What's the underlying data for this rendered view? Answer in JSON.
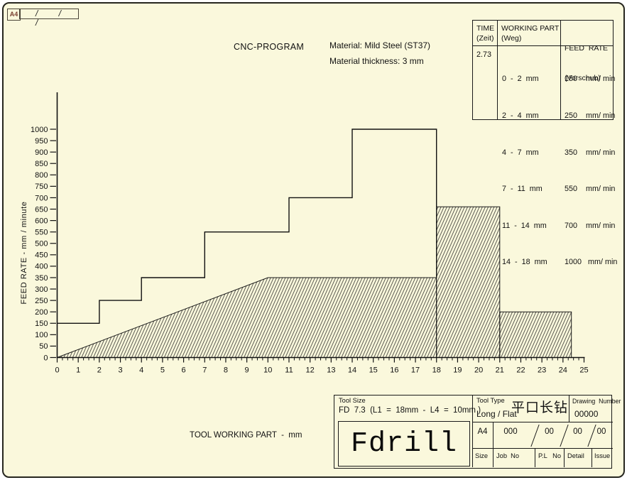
{
  "page": {
    "sheet_size": "A4",
    "corner_slashes": "/ / /"
  },
  "header": {
    "material_line1": "Material: Mild Steel (ST37)",
    "material_line2": "Material thickness: 3 mm"
  },
  "feed_table": {
    "col1_title": "TIME",
    "col1_sub": "(Zeit)",
    "col2_title": "WORKING PART",
    "col2_sub": "(Weg)",
    "col3_title": "FEED  RATE",
    "col3_sub": "(Vorschub)",
    "time_value": "2.73",
    "rows": [
      {
        "range": "0  -  2  mm",
        "rate": "150    mm/ min"
      },
      {
        "range": "2  -  4  mm",
        "rate": "250    mm/ min"
      },
      {
        "range": "4  -  7  mm",
        "rate": "350    mm/ min"
      },
      {
        "range": "7  -  11  mm",
        "rate": "550    mm/ min"
      },
      {
        "range": "11  -  14  mm",
        "rate": "700    mm/ min"
      },
      {
        "range": "14  -  18  mm",
        "rate": "1000   mm/ min"
      }
    ]
  },
  "chart_data": {
    "type": "line",
    "variant": "step-profile-with-hatched-area",
    "title": "CNC-PROGRAM",
    "xlabel": "TOOL WORKING PART  -  mm",
    "ylabel": "FEED RATE - mm / minute",
    "xlim": [
      0,
      25
    ],
    "ylim": [
      0,
      1000
    ],
    "x_tick_step": 1,
    "x_minor_tick_step": 0.25,
    "y_tick_step": 50,
    "grid": false,
    "legend": null,
    "series": [
      {
        "name": "programmed feed rate steps",
        "style": "step-outline",
        "points": [
          [
            0,
            150
          ],
          [
            2,
            150
          ],
          [
            2,
            250
          ],
          [
            4,
            250
          ],
          [
            4,
            350
          ],
          [
            7,
            350
          ],
          [
            7,
            550
          ],
          [
            11,
            550
          ],
          [
            11,
            700
          ],
          [
            14,
            700
          ],
          [
            14,
            1000
          ],
          [
            18,
            1000
          ],
          [
            18,
            350
          ]
        ]
      },
      {
        "name": "hatched feed profile",
        "style": "hatched-fill",
        "polygons": [
          [
            [
              0,
              0
            ],
            [
              10,
              350
            ],
            [
              18,
              350
            ],
            [
              18,
              0
            ]
          ],
          [
            [
              18,
              0
            ],
            [
              18,
              660
            ],
            [
              21,
              660
            ],
            [
              21,
              0
            ]
          ],
          [
            [
              21,
              0
            ],
            [
              21,
              200
            ],
            [
              24.4,
              200
            ],
            [
              24.4,
              0
            ]
          ]
        ]
      }
    ]
  },
  "title_block": {
    "tool_size_label": "Tool Size",
    "tool_size_value": "FD  7.3  (L1  =  18mm  -  L4  =  10mm )",
    "tool_name": "Fdrill",
    "tool_type_label": "Tool Type",
    "tool_type_value": "Long / Flat",
    "tool_type_cn": "平口长钻",
    "drawing_number_label": "Drawing  Number",
    "drawing_number_value": "00000",
    "size_value": "A4",
    "size_label": "Size",
    "job_no_value": "000",
    "job_no_label": "Job  No",
    "pl_no_value": "00",
    "pl_no_label": "P.L   No",
    "detail_value": "00",
    "detail_label": "Detail",
    "issue_value": "00",
    "issue_label": "Issue"
  }
}
